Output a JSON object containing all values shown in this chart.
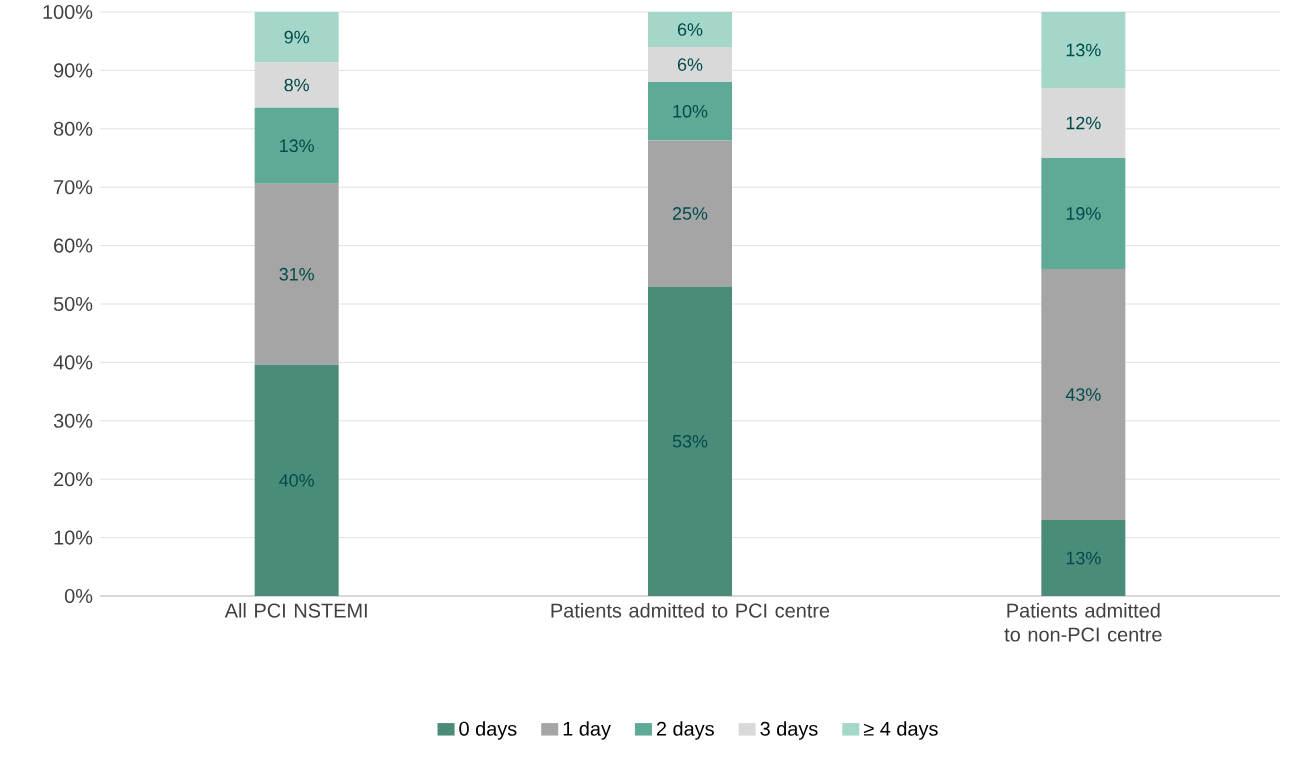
{
  "chart_data": {
    "type": "bar",
    "stacked": true,
    "categories": [
      "All PCI NSTEMI",
      "Patients admitted to PCI centre",
      "Patients admitted to non-PCI centre"
    ],
    "series": [
      {
        "name": "0 days",
        "color": "#4b8b79",
        "values": [
          39.6,
          53,
          13
        ],
        "value_labels": [
          "40%",
          "53%",
          "13%"
        ]
      },
      {
        "name": "1 day",
        "color": "#a5a5a5",
        "values": [
          31,
          25,
          43
        ],
        "value_labels": [
          "31%",
          "25%",
          "43%"
        ]
      },
      {
        "name": "2 days",
        "color": "#5eaa96",
        "values": [
          13,
          10,
          19
        ],
        "value_labels": [
          "13%",
          "10%",
          "19%"
        ]
      },
      {
        "name": "3 days",
        "color": "#d9d9d9",
        "values": [
          7.8,
          6,
          12
        ],
        "value_labels": [
          "8%",
          "6%",
          "12%"
        ]
      },
      {
        "name": "≥ 4 days",
        "color": "#a4d7c9",
        "values": [
          8.6,
          6,
          13
        ],
        "value_labels": [
          "9%",
          "6%",
          "13%"
        ]
      }
    ],
    "ylim": [
      0,
      100
    ],
    "yticks": [
      {
        "value": 0,
        "label": "0%"
      },
      {
        "value": 10,
        "label": "10%"
      },
      {
        "value": 20,
        "label": "20%"
      },
      {
        "value": 30,
        "label": "30%"
      },
      {
        "value": 40,
        "label": "40%"
      },
      {
        "value": 50,
        "label": "50%"
      },
      {
        "value": 60,
        "label": "60%"
      },
      {
        "value": 70,
        "label": "70%"
      },
      {
        "value": 80,
        "label": "80%"
      },
      {
        "value": 90,
        "label": "90%"
      },
      {
        "value": 100,
        "label": "100%"
      }
    ],
    "grid": "y",
    "legend": "bottom"
  }
}
